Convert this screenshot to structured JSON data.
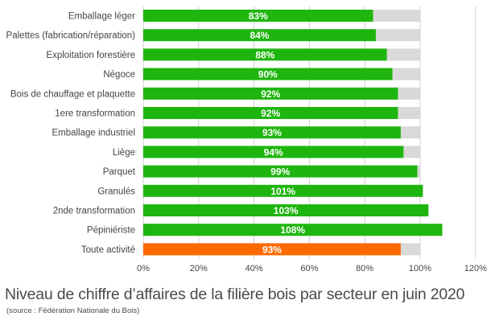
{
  "chart_data": {
    "type": "bar",
    "orientation": "horizontal",
    "categories": [
      "Emballage léger",
      "Palettes (fabrication/réparation)",
      "Exploitation forestière",
      "Négoce",
      "Bois de chauffage et plaquette",
      "1ere transformation",
      "Emballage industriel",
      "Liège",
      "Parquet",
      "Granulés",
      "2nde transformation",
      "Pépiniériste",
      "Toute activité"
    ],
    "values": [
      83,
      84,
      88,
      90,
      92,
      92,
      93,
      94,
      99,
      101,
      103,
      108,
      93
    ],
    "data_labels": [
      "83%",
      "84%",
      "88%",
      "90%",
      "92%",
      "92%",
      "93%",
      "94%",
      "99%",
      "101%",
      "103%",
      "108%",
      "93%"
    ],
    "reference": 100,
    "xlim": [
      0,
      120
    ],
    "xticks": [
      0,
      20,
      40,
      60,
      80,
      100,
      120
    ],
    "xtick_labels": [
      "0%",
      "20%",
      "40%",
      "60%",
      "80%",
      "100%",
      "120%"
    ],
    "grid": true,
    "colors": {
      "bar": "#1fb50f",
      "highlight_bar": "#ff6a00",
      "remainder": "#d9d9d9",
      "grid": "#d0d0d0",
      "label_text": "#ffffff",
      "axis_text": "#444444"
    },
    "highlight_index": 12
  },
  "caption": {
    "title": "Niveau de chiffre d’affaires de la filière bois par secteur en juin 2020",
    "source": "(source : Fédération Nationale du Bois)"
  }
}
